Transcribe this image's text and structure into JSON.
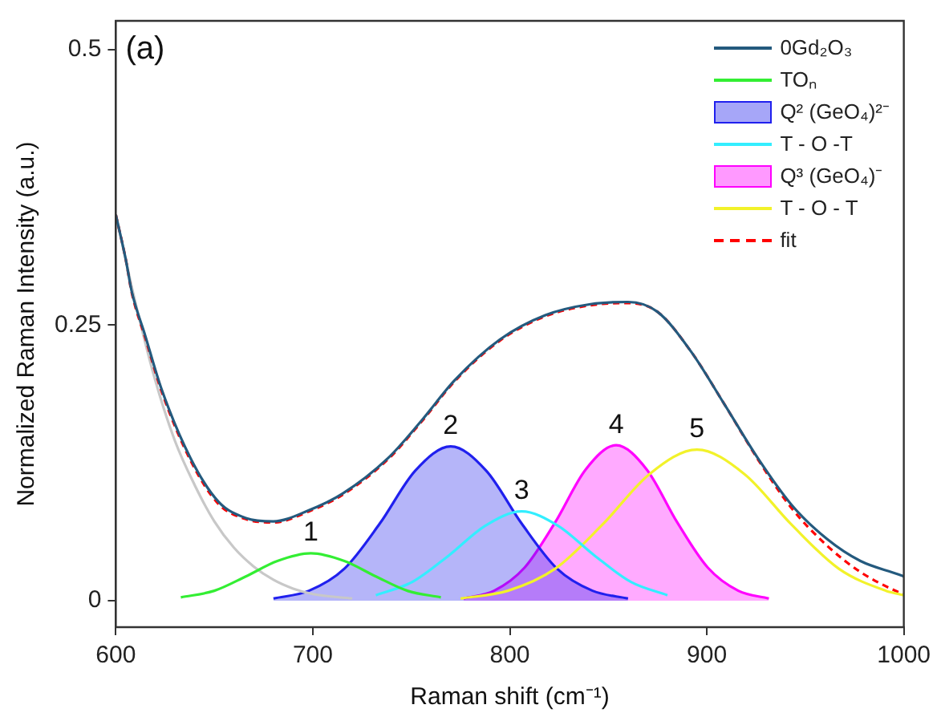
{
  "chart_data": {
    "type": "line",
    "xlabel": "Raman shift (cm⁻¹)",
    "ylabel": "Normalized Raman Intensity (a.u.)",
    "xlim": [
      600,
      1000
    ],
    "xticks": [
      600,
      700,
      800,
      900,
      1000
    ],
    "ylim": [
      -0.024,
      0.526
    ],
    "yticks": [
      0,
      0.25,
      0.5
    ],
    "legend": "top right",
    "annotations": [
      "(a)",
      {
        "text": "1",
        "x": 699,
        "y": 0.043
      },
      {
        "text": "2",
        "x": 770,
        "y": 0.14
      },
      {
        "text": "3",
        "x": 806,
        "y": 0.081
      },
      {
        "text": "4",
        "x": 854,
        "y": 0.141
      },
      {
        "text": "5",
        "x": 895,
        "y": 0.137
      }
    ],
    "series": [
      {
        "name": "0Gd₂O₃",
        "color": "#245a7e",
        "x": [
          600,
          605,
          608,
          615,
          623,
          638,
          652,
          666,
          680,
          698,
          715,
          738,
          755,
          772,
          795,
          818,
          841,
          860,
          875,
          892,
          909,
          926,
          943,
          961,
          978,
          997,
          1000
        ],
        "values": [
          0.35,
          0.31,
          0.281,
          0.24,
          0.193,
          0.129,
          0.09,
          0.075,
          0.072,
          0.082,
          0.097,
          0.129,
          0.163,
          0.2,
          0.237,
          0.259,
          0.269,
          0.271,
          0.262,
          0.226,
          0.178,
          0.129,
          0.087,
          0.056,
          0.036,
          0.024,
          0.022
        ]
      },
      {
        "name": "TOₙ",
        "color": "#33ee33",
        "x": [
          633,
          650,
          666,
          682,
          699,
          716,
          732,
          748,
          765
        ],
        "values": [
          0.003,
          0.009,
          0.022,
          0.036,
          0.043,
          0.036,
          0.022,
          0.009,
          0.003
        ]
      },
      {
        "name": "Q² (GeO₄)²⁻",
        "type": "area",
        "color": "#2020ee",
        "x": [
          680,
          698,
          716,
          734,
          752,
          770,
          788,
          806,
          824,
          842,
          860
        ],
        "values": [
          0.002,
          0.009,
          0.029,
          0.07,
          0.118,
          0.14,
          0.118,
          0.07,
          0.029,
          0.009,
          0.002
        ]
      },
      {
        "name": "T - O -T",
        "color": "#33eeff",
        "x": [
          732,
          750.5,
          769,
          787.5,
          806,
          824.5,
          843,
          861.5,
          880
        ],
        "values": [
          0.005,
          0.017,
          0.041,
          0.068,
          0.081,
          0.068,
          0.041,
          0.017,
          0.005
        ]
      },
      {
        "name": "Q³ (GeO₄)⁻",
        "type": "area",
        "color": "#ff00ff",
        "x": [
          776.5,
          792,
          807.5,
          823,
          838.5,
          854,
          869.5,
          885,
          900.5,
          916,
          931.5
        ],
        "values": [
          0.002,
          0.009,
          0.03,
          0.071,
          0.119,
          0.141,
          0.119,
          0.071,
          0.03,
          0.009,
          0.002
        ]
      },
      {
        "name": "T - O - T",
        "color": "#f2f22a",
        "x": [
          775,
          799,
          823,
          847,
          871,
          895,
          919,
          943,
          967,
          991,
          1000
        ],
        "values": [
          0.002,
          0.009,
          0.029,
          0.069,
          0.115,
          0.137,
          0.115,
          0.069,
          0.029,
          0.009,
          0.005
        ]
      },
      {
        "name": "fit",
        "color": "#ff0000",
        "line_style": "dashed",
        "x": [
          600,
          605,
          608,
          615,
          623,
          638,
          652,
          666,
          680,
          698,
          715,
          738,
          755,
          772,
          795,
          818,
          841,
          860,
          875,
          892,
          909,
          926,
          943,
          961,
          978,
          997,
          1000
        ],
        "values": [
          0.35,
          0.31,
          0.28,
          0.238,
          0.191,
          0.127,
          0.088,
          0.074,
          0.071,
          0.081,
          0.096,
          0.128,
          0.162,
          0.199,
          0.236,
          0.258,
          0.268,
          0.27,
          0.262,
          0.226,
          0.178,
          0.128,
          0.084,
          0.05,
          0.026,
          0.008,
          0.006
        ]
      },
      {
        "color": "#c8c8c8",
        "x": [
          600,
          610,
          620,
          630,
          640,
          650,
          660,
          670,
          680,
          690,
          700,
          720
        ],
        "values": [
          0.35,
          0.27,
          0.2,
          0.145,
          0.105,
          0.072,
          0.048,
          0.031,
          0.019,
          0.011,
          0.006,
          0.002
        ]
      }
    ]
  }
}
